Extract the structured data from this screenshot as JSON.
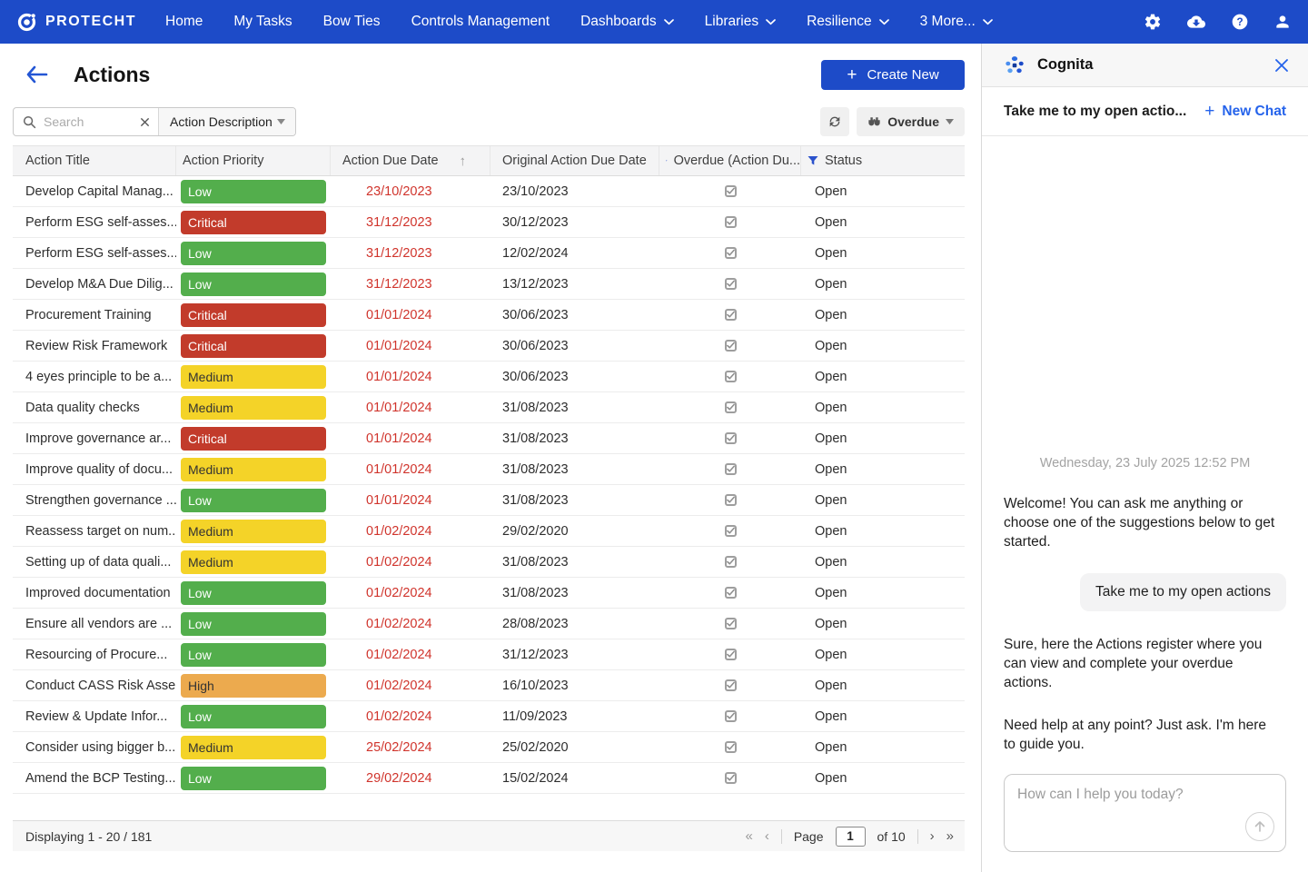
{
  "navbar": {
    "brand": "PROTECHT",
    "items": [
      {
        "label": "Home",
        "dropdown": false
      },
      {
        "label": "My Tasks",
        "dropdown": false
      },
      {
        "label": "Bow Ties",
        "dropdown": false
      },
      {
        "label": "Controls Management",
        "dropdown": false
      },
      {
        "label": "Dashboards",
        "dropdown": true
      },
      {
        "label": "Libraries",
        "dropdown": true
      },
      {
        "label": "Resilience",
        "dropdown": true
      },
      {
        "label": "3 More...",
        "dropdown": true
      }
    ],
    "icons": [
      "settings-icon",
      "cloud-download-icon",
      "help-icon",
      "user-icon"
    ]
  },
  "header": {
    "title": "Actions",
    "create_new": "Create New"
  },
  "toolbar": {
    "search_placeholder": "Search",
    "filter_field": "Action Description",
    "view_name": "Overdue"
  },
  "table": {
    "columns": [
      "Action Title",
      "Action Priority",
      "Action Due Date",
      "Original Action Due Date",
      "Overdue (Action Du...",
      "Status"
    ],
    "rows": [
      {
        "title": "Develop Capital Manag...",
        "priority": "Low",
        "due": "23/10/2023",
        "orig": "23/10/2023",
        "overdue": true,
        "status": "Open"
      },
      {
        "title": "Perform ESG self-asses...",
        "priority": "Critical",
        "due": "31/12/2023",
        "orig": "30/12/2023",
        "overdue": true,
        "status": "Open"
      },
      {
        "title": "Perform ESG self-asses...",
        "priority": "Low",
        "due": "31/12/2023",
        "orig": "12/02/2024",
        "overdue": true,
        "status": "Open"
      },
      {
        "title": "Develop M&A Due Dilig...",
        "priority": "Low",
        "due": "31/12/2023",
        "orig": "13/12/2023",
        "overdue": true,
        "status": "Open"
      },
      {
        "title": "Procurement Training",
        "priority": "Critical",
        "due": "01/01/2024",
        "orig": "30/06/2023",
        "overdue": true,
        "status": "Open"
      },
      {
        "title": "Review Risk Framework",
        "priority": "Critical",
        "due": "01/01/2024",
        "orig": "30/06/2023",
        "overdue": true,
        "status": "Open"
      },
      {
        "title": "4 eyes principle to be a...",
        "priority": "Medium",
        "due": "01/01/2024",
        "orig": "30/06/2023",
        "overdue": true,
        "status": "Open"
      },
      {
        "title": "Data quality checks",
        "priority": "Medium",
        "due": "01/01/2024",
        "orig": "31/08/2023",
        "overdue": true,
        "status": "Open"
      },
      {
        "title": "Improve governance ar...",
        "priority": "Critical",
        "due": "01/01/2024",
        "orig": "31/08/2023",
        "overdue": true,
        "status": "Open"
      },
      {
        "title": "Improve quality of docu...",
        "priority": "Medium",
        "due": "01/01/2024",
        "orig": "31/08/2023",
        "overdue": true,
        "status": "Open"
      },
      {
        "title": "Strengthen governance ...",
        "priority": "Low",
        "due": "01/01/2024",
        "orig": "31/08/2023",
        "overdue": true,
        "status": "Open"
      },
      {
        "title": "Reassess target on num...",
        "priority": "Medium",
        "due": "01/02/2024",
        "orig": "29/02/2020",
        "overdue": true,
        "status": "Open"
      },
      {
        "title": "Setting up of data quali...",
        "priority": "Medium",
        "due": "01/02/2024",
        "orig": "31/08/2023",
        "overdue": true,
        "status": "Open"
      },
      {
        "title": "Improved documentation",
        "priority": "Low",
        "due": "01/02/2024",
        "orig": "31/08/2023",
        "overdue": true,
        "status": "Open"
      },
      {
        "title": "Ensure all vendors are ...",
        "priority": "Low",
        "due": "01/02/2024",
        "orig": "28/08/2023",
        "overdue": true,
        "status": "Open"
      },
      {
        "title": "Resourcing of Procure...",
        "priority": "Low",
        "due": "01/02/2024",
        "orig": "31/12/2023",
        "overdue": true,
        "status": "Open"
      },
      {
        "title": "Conduct CASS Risk Asse...",
        "priority": "High",
        "due": "01/02/2024",
        "orig": "16/10/2023",
        "overdue": true,
        "status": "Open"
      },
      {
        "title": "Review & Update Infor...",
        "priority": "Low",
        "due": "01/02/2024",
        "orig": "11/09/2023",
        "overdue": true,
        "status": "Open"
      },
      {
        "title": "Consider using bigger b...",
        "priority": "Medium",
        "due": "25/02/2024",
        "orig": "25/02/2020",
        "overdue": true,
        "status": "Open"
      },
      {
        "title": "Amend the BCP Testing...",
        "priority": "Low",
        "due": "29/02/2024",
        "orig": "15/02/2024",
        "overdue": true,
        "status": "Open"
      }
    ]
  },
  "footer": {
    "displaying": "Displaying 1 - 20 / 181",
    "page_label": "Page",
    "page_value": "1",
    "page_total": "of 10"
  },
  "chat": {
    "title": "Cognita",
    "thread_title": "Take me to my open actio...",
    "new_chat": "New Chat",
    "timestamp": "Wednesday, 23 July 2025  12:52 PM",
    "messages": [
      {
        "type": "bot",
        "text": "Welcome! You can ask me anything or choose one of the suggestions below to get started."
      },
      {
        "type": "suggestion",
        "text": "Take me to my open actions"
      },
      {
        "type": "bot",
        "text": "Sure, here the Actions register where you can view and complete your overdue actions."
      },
      {
        "type": "bot",
        "text": "Need help at any point? Just ask. I'm here to guide you."
      }
    ],
    "input_placeholder": "How can I help you today?"
  },
  "colors": {
    "navbar_blue": "#1d4bc8",
    "accent_blue": "#2563eb",
    "due_date_red": "#d0342c",
    "priority": {
      "Low": {
        "bg": "#53ae4c",
        "text": "#ffffff"
      },
      "Medium": {
        "bg": "#f4d328",
        "text": "#333333"
      },
      "High": {
        "bg": "#ecaa4e",
        "text": "#333333"
      },
      "Critical": {
        "bg": "#c23b2b",
        "text": "#ffffff"
      }
    }
  }
}
